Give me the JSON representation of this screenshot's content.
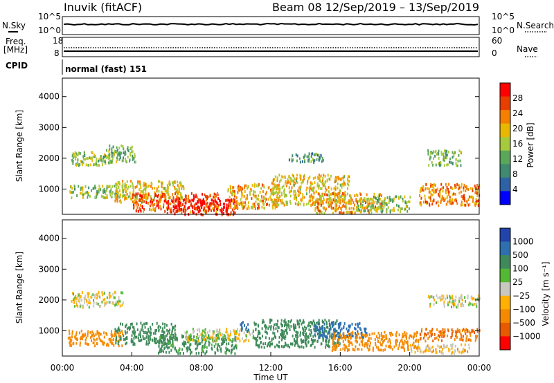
{
  "header": {
    "station": "Inuvik (fitACF)",
    "beam_and_dates": "Beam 08  12/Sep/2019 – 13/Sep/2019"
  },
  "top_strip": {
    "nsky_label": "N.Sky",
    "nsearch_label": "N.Search",
    "left_ticks": [
      "10^5",
      "10^0"
    ],
    "right_ticks": [
      "10^5",
      "10^0"
    ],
    "freq_label": "Freq.",
    "freq_unit": "[MHz]",
    "freq_ticks": [
      "18",
      "8"
    ],
    "nave_label": "Nave",
    "nave_ticks": [
      "60",
      "0"
    ],
    "cpid_label": "CPID",
    "cpid_value": "normal (fast) 151"
  },
  "colors": {
    "power_scale": [
      "#0000ff",
      "#2e62a6",
      "#3f8a70",
      "#5aa65a",
      "#a7c93c",
      "#e8b800",
      "#f57f00",
      "#e83e00",
      "#ff0000"
    ],
    "velocity_scale": [
      "#2244aa",
      "#2e6fb0",
      "#3f8a5a",
      "#55b835",
      "#c8c8c0",
      "#ffb000",
      "#f58a00",
      "#e85a00",
      "#ff0000"
    ]
  },
  "chart_data": [
    {
      "type": "heatmap",
      "panel": "power",
      "xlabel": "",
      "ylabel": "Slant Range [km]",
      "xlim": [
        "00:00",
        "00:00"
      ],
      "ylim": [
        180,
        4600
      ],
      "yticks": [
        "1000",
        "2000",
        "3000",
        "4000"
      ],
      "colorbar_label": "Power [dB]",
      "colorbar_ticks": [
        "4",
        "8",
        "12",
        "16",
        "20",
        "24",
        "28"
      ],
      "colorbar_range": [
        0,
        30
      ],
      "blobs": [
        {
          "t0": 0.5,
          "t1": 3.2,
          "r0": 1800,
          "r1": 2250,
          "v": 14
        },
        {
          "t0": 2.4,
          "t1": 4.2,
          "r0": 1900,
          "r1": 2450,
          "v": 12
        },
        {
          "t0": 0.4,
          "t1": 4.0,
          "r0": 750,
          "r1": 1150,
          "v": 14
        },
        {
          "t0": 3.0,
          "t1": 7.0,
          "r0": 600,
          "r1": 1300,
          "v": 18
        },
        {
          "t0": 4.0,
          "t1": 9.0,
          "r0": 300,
          "r1": 900,
          "v": 24
        },
        {
          "t0": 6.0,
          "t1": 10.0,
          "r0": 200,
          "r1": 700,
          "v": 28
        },
        {
          "t0": 9.5,
          "t1": 12.5,
          "r0": 400,
          "r1": 1200,
          "v": 20
        },
        {
          "t0": 12.0,
          "t1": 16.5,
          "r0": 500,
          "r1": 1500,
          "v": 18
        },
        {
          "t0": 14.5,
          "t1": 18.5,
          "r0": 250,
          "r1": 900,
          "v": 20
        },
        {
          "t0": 17.0,
          "t1": 20.0,
          "r0": 300,
          "r1": 800,
          "v": 14
        },
        {
          "t0": 20.5,
          "t1": 24.0,
          "r0": 500,
          "r1": 1200,
          "v": 22
        },
        {
          "t0": 21.0,
          "t1": 23.0,
          "r0": 1800,
          "r1": 2300,
          "v": 12
        },
        {
          "t0": 13.0,
          "t1": 15.0,
          "r0": 1900,
          "r1": 2200,
          "v": 10
        }
      ]
    },
    {
      "type": "heatmap",
      "panel": "velocity",
      "xlabel": "Time UT",
      "ylabel": "Slant Range [km]",
      "xticks": [
        "00:00",
        "04:00",
        "08:00",
        "12:00",
        "16:00",
        "20:00",
        "00:00"
      ],
      "yticks": [
        "1000",
        "2000",
        "3000",
        "4000"
      ],
      "ylim": [
        180,
        4600
      ],
      "colorbar_label": "Velocity [m s⁻¹]",
      "colorbar_ticks": [
        "1000",
        "500",
        "100",
        "25",
        "−25",
        "−100",
        "−500",
        "−1000"
      ],
      "blobs": [
        {
          "t0": 0.5,
          "t1": 3.5,
          "r0": 1800,
          "r1": 2300,
          "v": 0
        },
        {
          "t0": 0.3,
          "t1": 3.5,
          "r0": 550,
          "r1": 1050,
          "v": -300
        },
        {
          "t0": 3.0,
          "t1": 6.5,
          "r0": 600,
          "r1": 1300,
          "v": 200
        },
        {
          "t0": 5.5,
          "t1": 10.0,
          "r0": 300,
          "r1": 900,
          "v": 150
        },
        {
          "t0": 7.0,
          "t1": 11.0,
          "r0": 700,
          "r1": 1100,
          "v": 0
        },
        {
          "t0": 10.2,
          "t1": 10.7,
          "r0": 1000,
          "r1": 1350,
          "v": 900
        },
        {
          "t0": 11.0,
          "t1": 16.0,
          "r0": 500,
          "r1": 1400,
          "v": 300
        },
        {
          "t0": 14.5,
          "t1": 17.5,
          "r0": 800,
          "r1": 1300,
          "v": 600
        },
        {
          "t0": 15.5,
          "t1": 20.5,
          "r0": 400,
          "r1": 1000,
          "v": -200
        },
        {
          "t0": 20.5,
          "t1": 24.0,
          "r0": 700,
          "r1": 1100,
          "v": -500
        },
        {
          "t0": 20.0,
          "t1": 23.5,
          "r0": 300,
          "r1": 600,
          "v": -50
        },
        {
          "t0": 21.0,
          "t1": 24.0,
          "r0": 1800,
          "r1": 2200,
          "v": 0
        }
      ]
    }
  ]
}
